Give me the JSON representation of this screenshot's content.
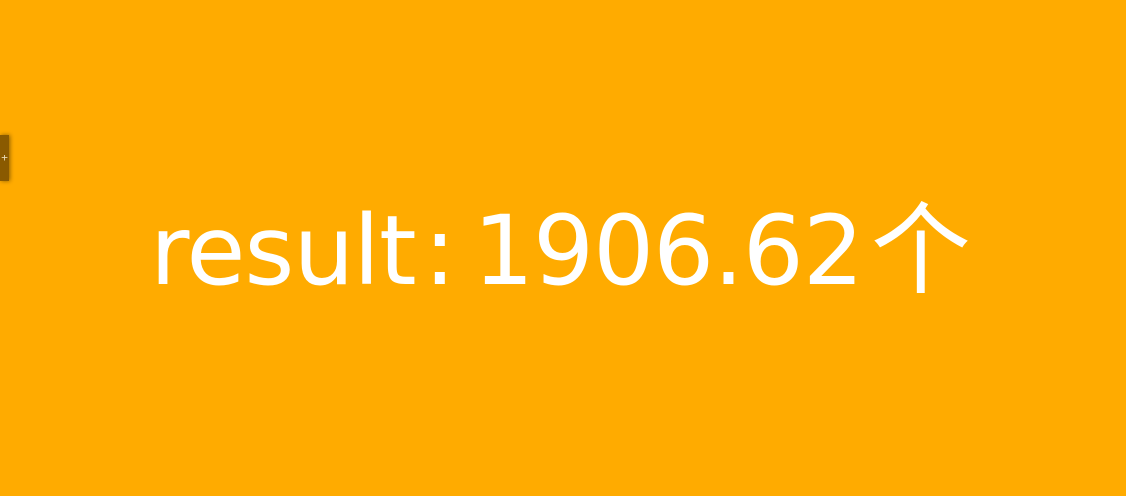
{
  "result": {
    "label": "result",
    "separator": ":",
    "value": "1906.62",
    "unit": "个"
  },
  "side_tab": {
    "glyph": "+"
  },
  "colors": {
    "background": "#FFAB00",
    "text": "#FFFFFF",
    "side_tab": "#8A5A00"
  }
}
